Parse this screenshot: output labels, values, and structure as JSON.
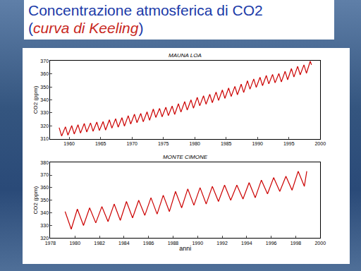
{
  "title": "Concentrazione atmosferica di CO2",
  "subtitle": "(curva di Keeling)",
  "chart_data": [
    {
      "type": "line",
      "title": "MAUNA LOA",
      "y_label": "CO2 (ppm)",
      "color": "#cc0000",
      "grid": false,
      "xlim": [
        1957,
        2000
      ],
      "xticks": [
        1960,
        1965,
        1970,
        1975,
        1980,
        1985,
        1990,
        1995,
        2000
      ],
      "ylim": [
        310,
        370
      ],
      "yticks": [
        310,
        320,
        330,
        340,
        350,
        360,
        370
      ],
      "x": [
        1958.4,
        1958.8,
        1959.4,
        1959.8,
        1960.4,
        1960.8,
        1961.4,
        1961.8,
        1962.4,
        1962.8,
        1963.4,
        1963.8,
        1964.4,
        1964.8,
        1965.4,
        1965.8,
        1966.4,
        1966.8,
        1967.4,
        1967.8,
        1968.4,
        1968.8,
        1969.4,
        1969.8,
        1970.4,
        1970.8,
        1971.4,
        1971.8,
        1972.4,
        1972.8,
        1973.4,
        1973.8,
        1974.4,
        1974.8,
        1975.4,
        1975.8,
        1976.4,
        1976.8,
        1977.4,
        1977.8,
        1978.4,
        1978.8,
        1979.4,
        1979.8,
        1980.4,
        1980.8,
        1981.4,
        1981.8,
        1982.4,
        1982.8,
        1983.4,
        1983.8,
        1984.4,
        1984.8,
        1985.4,
        1985.8,
        1986.4,
        1986.8,
        1987.4,
        1987.8,
        1988.4,
        1988.8,
        1989.4,
        1989.8,
        1990.4,
        1990.8,
        1991.4,
        1991.8,
        1992.4,
        1992.8,
        1993.4,
        1993.8,
        1994.4,
        1994.8,
        1995.4,
        1995.8,
        1996.4,
        1996.8,
        1997.4,
        1997.8,
        1998.4,
        1998.6
      ],
      "values": [
        318.5,
        312.0,
        319.2,
        312.7,
        320.1,
        313.6,
        320.8,
        314.3,
        321.7,
        315.2,
        322.2,
        315.7,
        322.8,
        316.3,
        323.2,
        316.7,
        324.6,
        318.1,
        325.4,
        318.9,
        326.2,
        319.7,
        327.8,
        321.3,
        328.9,
        322.4,
        329.5,
        323.0,
        330.7,
        324.2,
        332.9,
        326.4,
        333.4,
        326.9,
        334.3,
        327.8,
        335.2,
        328.7,
        337.0,
        330.5,
        338.6,
        332.1,
        340.0,
        333.5,
        341.9,
        335.4,
        343.1,
        336.6,
        344.3,
        337.8,
        346.0,
        339.5,
        347.6,
        341.1,
        349.1,
        342.6,
        350.4,
        343.9,
        352.1,
        345.6,
        354.7,
        348.2,
        356.1,
        349.6,
        357.4,
        350.9,
        358.8,
        352.3,
        359.6,
        353.1,
        360.3,
        353.8,
        362.0,
        355.5,
        364.1,
        357.6,
        365.8,
        359.3,
        367.0,
        360.5,
        369.8,
        367.0
      ]
    },
    {
      "type": "line",
      "title": "MONTE CIMONE",
      "x_label": "anni",
      "y_label": "CO2 (ppm)",
      "color": "#cc0000",
      "grid": false,
      "xlim": [
        1978,
        2000
      ],
      "xticks": [
        1978,
        1980,
        1982,
        1984,
        1986,
        1988,
        1990,
        1992,
        1994,
        1996,
        1998,
        2000
      ],
      "ylim": [
        320,
        380
      ],
      "yticks": [
        320,
        330,
        340,
        350,
        360,
        370,
        380
      ],
      "x": [
        1979.2,
        1979.7,
        1980.2,
        1980.7,
        1981.2,
        1981.7,
        1982.2,
        1982.7,
        1983.2,
        1983.7,
        1984.2,
        1984.7,
        1985.2,
        1985.7,
        1986.2,
        1986.7,
        1987.2,
        1987.7,
        1988.2,
        1988.7,
        1989.2,
        1989.7,
        1990.2,
        1990.7,
        1991.2,
        1991.7,
        1992.2,
        1992.7,
        1993.2,
        1993.7,
        1994.2,
        1994.7,
        1995.2,
        1995.7,
        1996.2,
        1996.7,
        1997.2,
        1997.7,
        1998.2,
        1998.7,
        1998.9
      ],
      "values": [
        341,
        327,
        343,
        330,
        344,
        332,
        345,
        333,
        347,
        334,
        349,
        336,
        350,
        338,
        352,
        339,
        354,
        341,
        357,
        344,
        359,
        346,
        360,
        347,
        361,
        349,
        362,
        350,
        362,
        351,
        364,
        352,
        366,
        355,
        368,
        357,
        369,
        358,
        373,
        361,
        373
      ]
    }
  ]
}
